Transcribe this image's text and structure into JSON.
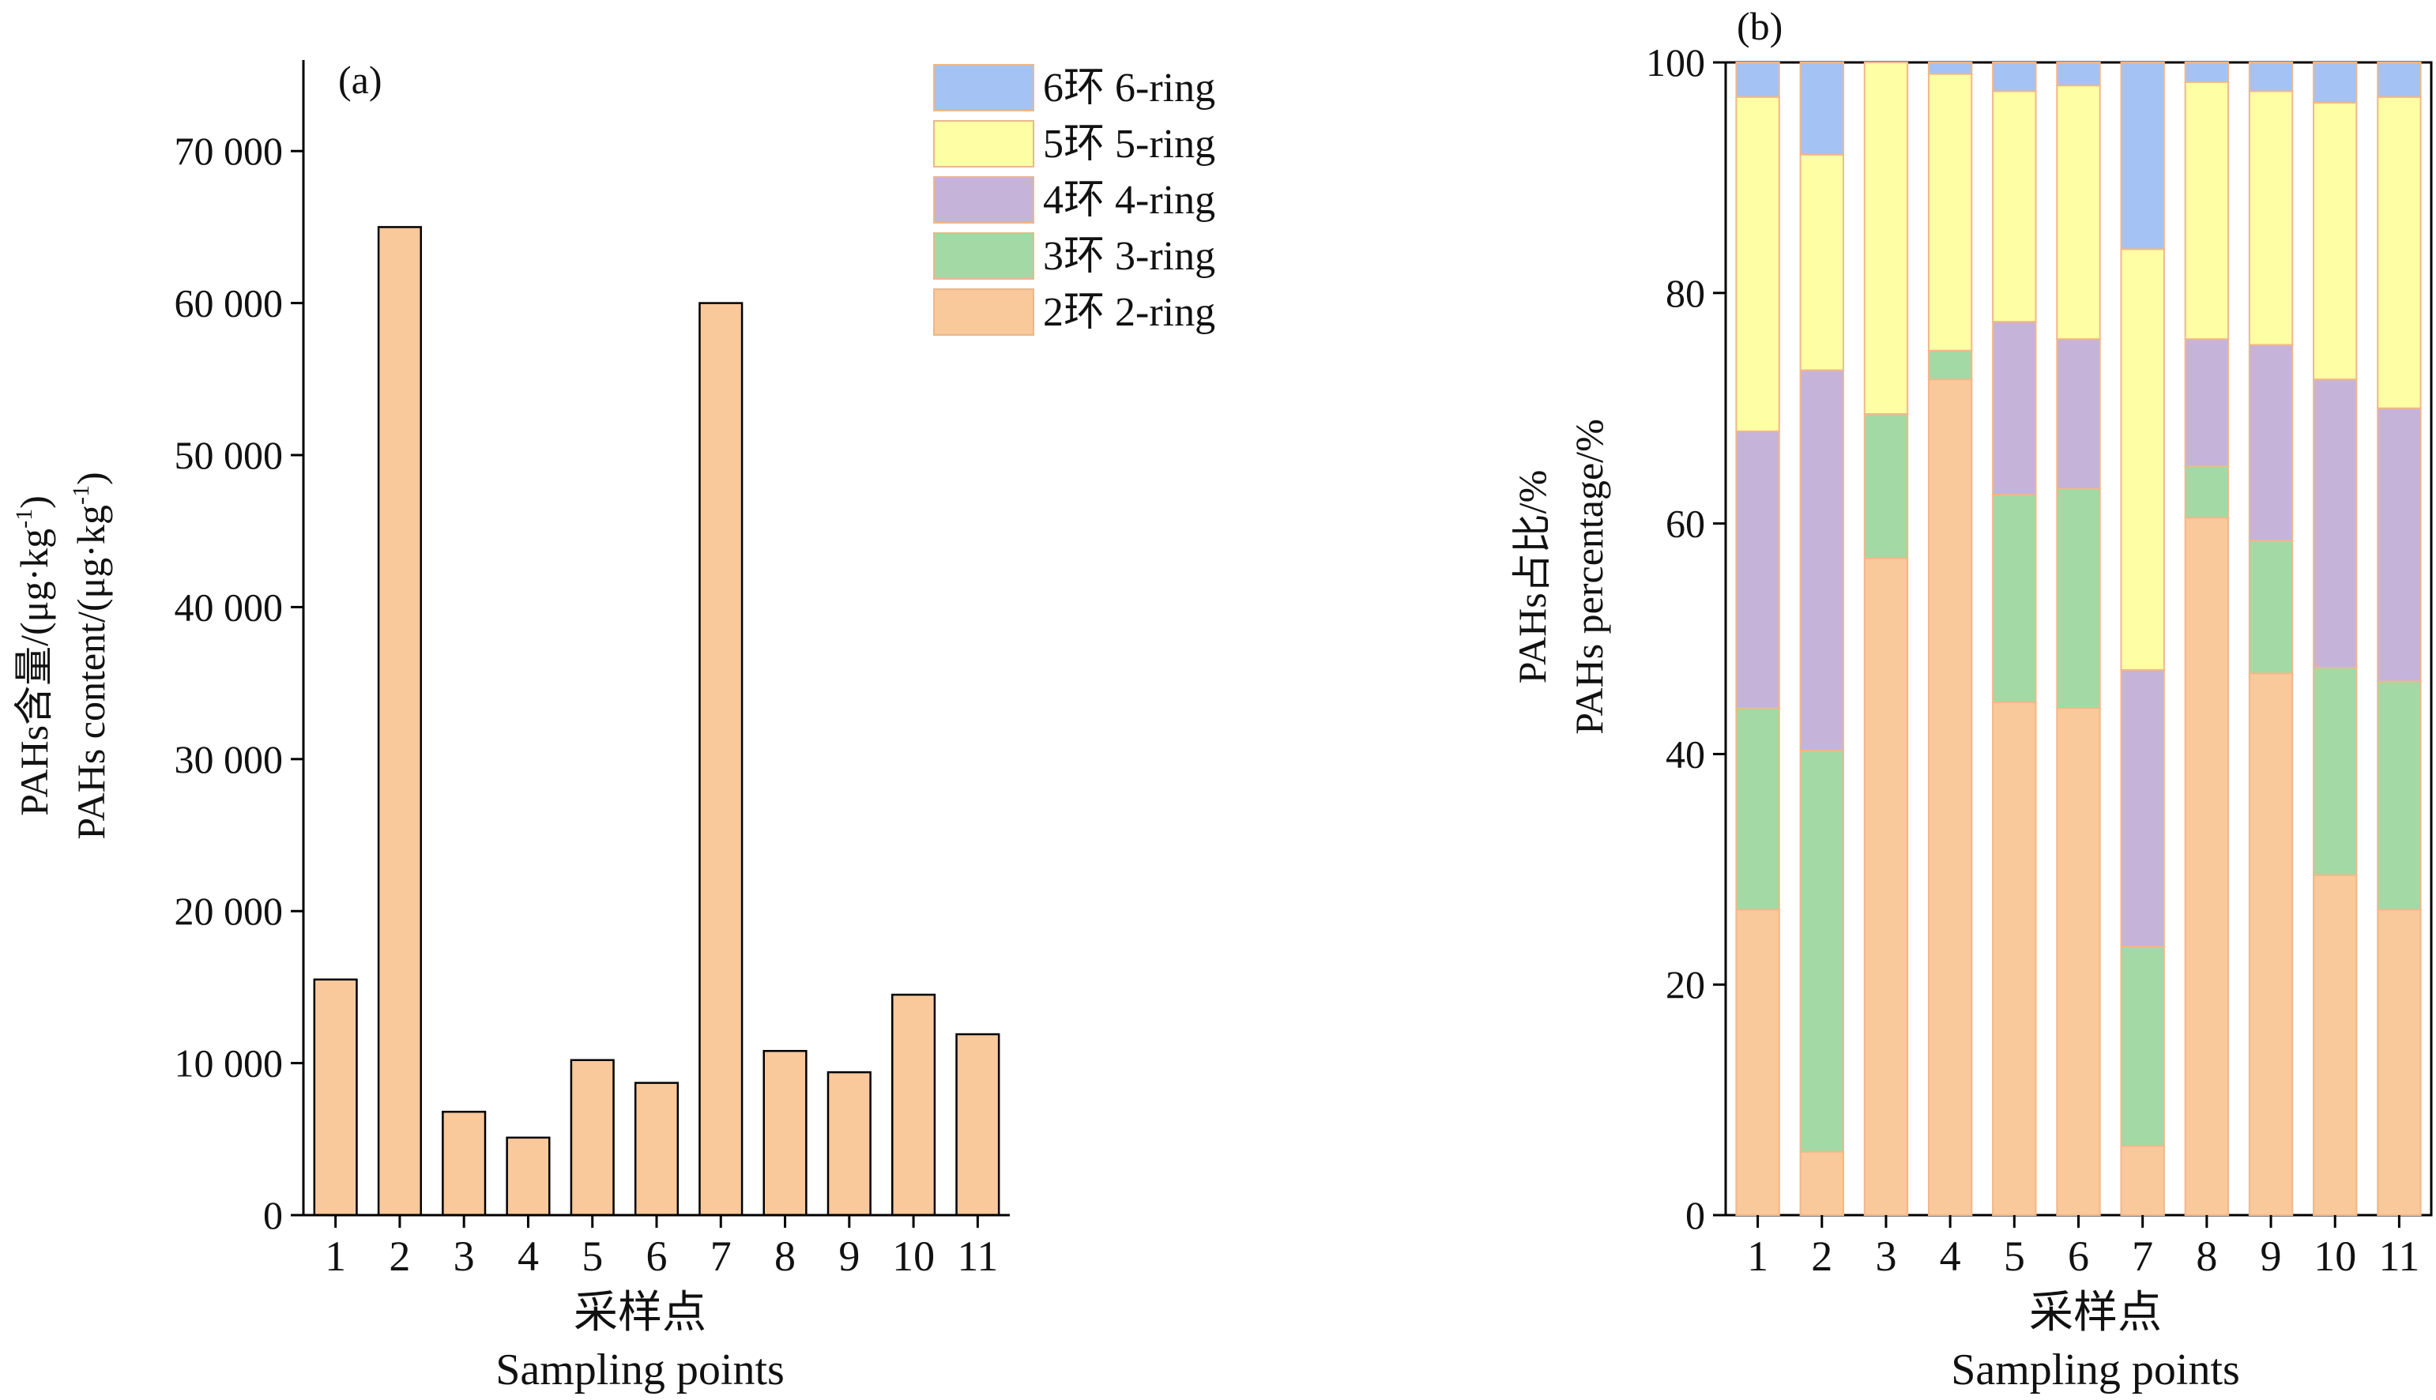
{
  "chart_data": [
    {
      "panel": "(a)",
      "type": "bar",
      "categories": [
        "1",
        "2",
        "3",
        "4",
        "5",
        "6",
        "7",
        "8",
        "9",
        "10",
        "11"
      ],
      "values": [
        15500,
        65000,
        6800,
        5100,
        10200,
        8700,
        60000,
        10800,
        9400,
        14500,
        11900
      ],
      "ylabel_cn": "PAHs含量/(μg·kg",
      "ylabel_en": "PAHs content/(μg·kg",
      "ylabel_sup": "-1",
      "ylabel_close": ")",
      "xlabel_cn": "采样点",
      "xlabel_en": "Sampling points",
      "ylim": [
        0,
        75000
      ],
      "yticks": [
        0,
        10000,
        20000,
        30000,
        40000,
        50000,
        60000,
        70000
      ],
      "ytick_labels": [
        "0",
        "10 000",
        "20 000",
        "30 000",
        "40 000",
        "50 000",
        "60 000",
        "70 000"
      ],
      "bar_color": "#f9c89b",
      "legend": [
        {
          "label": "6环 6-ring",
          "color": "#a4c2f4"
        },
        {
          "label": "5环 5-ring",
          "color": "#fefea4"
        },
        {
          "label": "4环 4-ring",
          "color": "#c5b3d9"
        },
        {
          "label": "3环 3-ring",
          "color": "#a3d9a5"
        },
        {
          "label": "2环 2-ring",
          "color": "#f9c89b"
        }
      ],
      "legend_position": "top-right"
    },
    {
      "panel": "(b)",
      "type": "bar",
      "stacked": true,
      "categories": [
        "1",
        "2",
        "3",
        "4",
        "5",
        "6",
        "7",
        "8",
        "9",
        "10",
        "11"
      ],
      "series": [
        {
          "name": "2环 2-ring",
          "color": "#f9c89b",
          "values": [
            26.5,
            5.5,
            57,
            72.5,
            44.5,
            44,
            6,
            60.5,
            47,
            29.5,
            26.5
          ]
        },
        {
          "name": "3环 3-ring",
          "color": "#a3d9a5",
          "values": [
            17.5,
            34.8,
            12.5,
            2.5,
            18,
            19,
            17.3,
            4.5,
            11.5,
            18,
            19.8
          ]
        },
        {
          "name": "4环 4-ring",
          "color": "#c5b3d9",
          "values": [
            24,
            33,
            0,
            0,
            15,
            13,
            24,
            11,
            17,
            25,
            23.7
          ]
        },
        {
          "name": "5环 5-ring",
          "color": "#fefea4",
          "values": [
            29,
            18.7,
            30.5,
            24,
            20,
            22,
            36.5,
            22.3,
            22,
            24,
            27
          ]
        },
        {
          "name": "6环 6-ring",
          "color": "#a4c2f4",
          "values": [
            3,
            8,
            0,
            1,
            2.5,
            2,
            16.2,
            1.7,
            2.5,
            3.5,
            3
          ]
        }
      ],
      "ylabel_cn": "PAHs占比/%",
      "ylabel_en": "PAHs percentage/%",
      "xlabel_cn": "采样点",
      "xlabel_en": "Sampling points",
      "ylim": [
        0,
        100
      ],
      "yticks": [
        0,
        20,
        40,
        60,
        80,
        100
      ],
      "ytick_labels": [
        "0",
        "20",
        "40",
        "60",
        "80",
        "100"
      ]
    }
  ]
}
